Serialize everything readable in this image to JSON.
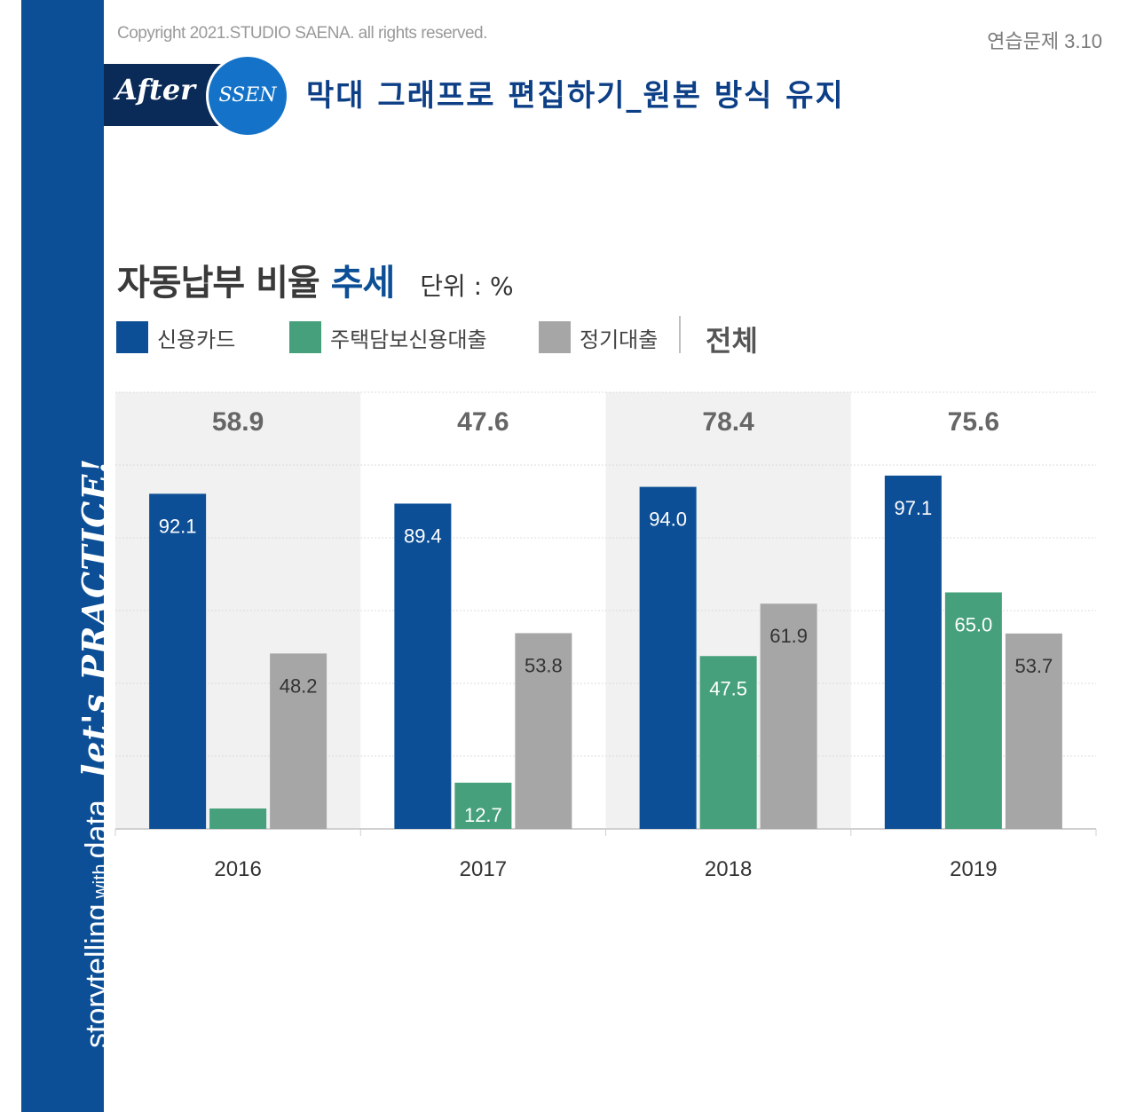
{
  "copyright": "Copyright 2021.STUDIO SAENA. all rights reserved.",
  "exercise": "연습문제 3.10",
  "badge": {
    "after": "After",
    "ssen": "SSEN"
  },
  "headline": "막대 그래프로 편집하기_원본 방식 유지",
  "sidebar": {
    "storytelling": "storytelling",
    "with": "with",
    "data": "data",
    "practice": "let's PRACTICE!"
  },
  "title": {
    "main": "자동납부 비율",
    "accent": "추세",
    "unit": "단위 : %"
  },
  "legend": {
    "items": [
      {
        "label": "신용카드",
        "color": "#0d4f96"
      },
      {
        "label": "주택담보신용대출",
        "color": "#45a07b"
      },
      {
        "label": "정기대출",
        "color": "#a6a6a6"
      }
    ],
    "total_label": "전체"
  },
  "chart_data": {
    "type": "bar",
    "title": "자동납부 비율 추세",
    "unit": "%",
    "categories": [
      "2016",
      "2017",
      "2018",
      "2019"
    ],
    "series": [
      {
        "name": "신용카드",
        "values": [
          92.1,
          89.4,
          94.0,
          97.1
        ],
        "color": "#0d4f96",
        "label_color": "#ffffff"
      },
      {
        "name": "주택담보신용대출",
        "values": [
          5.6,
          12.7,
          47.5,
          65.0
        ],
        "color": "#45a07b",
        "label_color": "#ffffff"
      },
      {
        "name": "정기대출",
        "values": [
          48.2,
          53.8,
          61.9,
          53.7
        ],
        "color": "#a6a6a6",
        "label_color": "#333333"
      }
    ],
    "totals": {
      "name": "전체",
      "values": [
        "58.9",
        "47.6",
        "78.4",
        "75.6"
      ]
    },
    "ylim": [
      0,
      120
    ],
    "grid": true
  }
}
